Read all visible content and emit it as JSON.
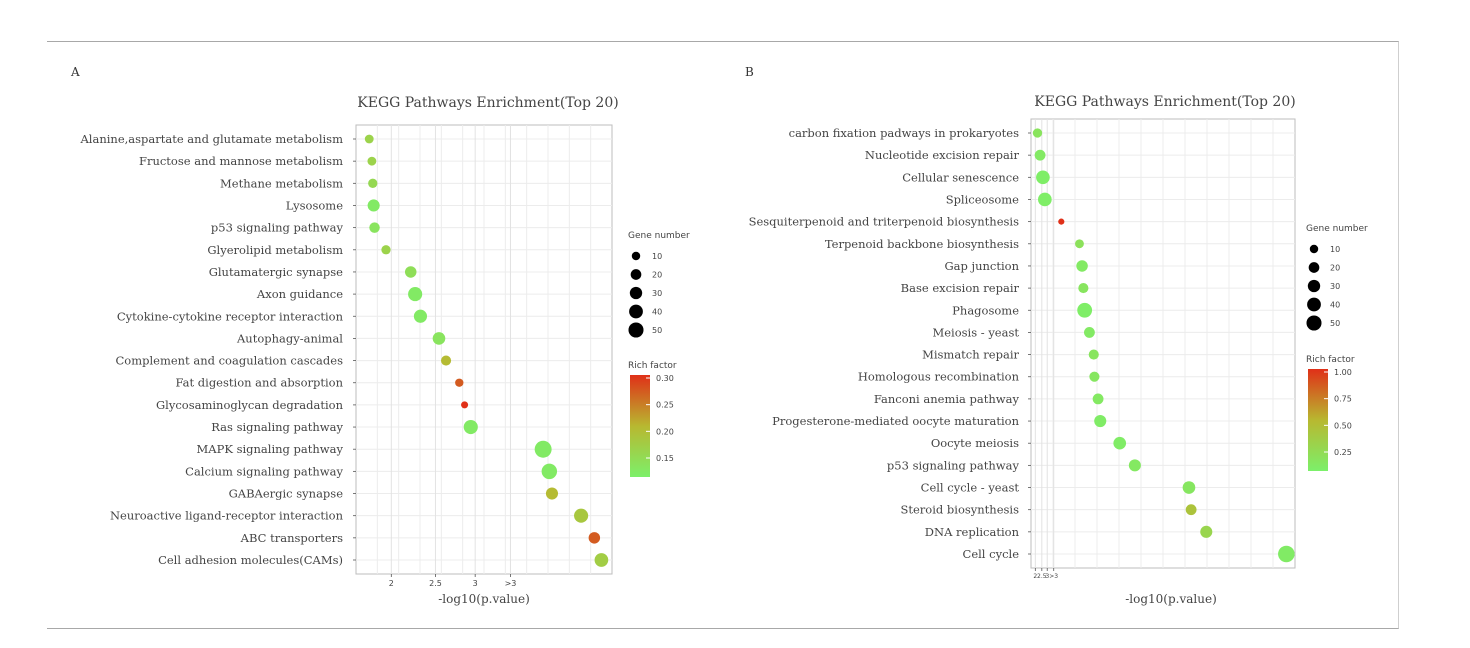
{
  "chart_data": [
    {
      "panel": "A",
      "type": "scatter",
      "title": "KEGG Pathways Enrichment(Top 20)",
      "xlabel": "-log10(p.value)",
      "ylabel": "",
      "x_ticks": [
        "2",
        "2.5",
        "3",
        ">3"
      ],
      "legend_size_title": "Gene number",
      "legend_size_values": [
        10,
        20,
        30,
        40,
        50
      ],
      "legend_color_title": "Rich factor",
      "legend_color_ticks": [
        "0.30",
        "0.25",
        "0.20",
        "0.15"
      ],
      "color_range": [
        0.12,
        0.31
      ],
      "colors": {
        "low": "#7cf06a",
        "mid": "#b8b830",
        "high": "#e03018"
      },
      "grid": true,
      "points": [
        {
          "pathway": "Alanine,aspartate and glutamate metabolism",
          "x": 1.75,
          "gene_number": 5,
          "rich_factor": 0.17
        },
        {
          "pathway": "Fructose and mannose metabolism",
          "x": 1.78,
          "gene_number": 5,
          "rich_factor": 0.17
        },
        {
          "pathway": "Methane metabolism",
          "x": 1.79,
          "gene_number": 6,
          "rich_factor": 0.16
        },
        {
          "pathway": "Lysosome",
          "x": 1.8,
          "gene_number": 14,
          "rich_factor": 0.13
        },
        {
          "pathway": "p53 signaling pathway",
          "x": 1.81,
          "gene_number": 9,
          "rich_factor": 0.14
        },
        {
          "pathway": "Glyerolipid metabolism",
          "x": 1.94,
          "gene_number": 6,
          "rich_factor": 0.17
        },
        {
          "pathway": "Glutamatergic synapse",
          "x": 2.22,
          "gene_number": 12,
          "rich_factor": 0.15
        },
        {
          "pathway": "Axon guidance",
          "x": 2.27,
          "gene_number": 22,
          "rich_factor": 0.13
        },
        {
          "pathway": "Cytokine-cytokine receptor interaction",
          "x": 2.33,
          "gene_number": 18,
          "rich_factor": 0.13
        },
        {
          "pathway": "Autophagy-animal",
          "x": 2.54,
          "gene_number": 16,
          "rich_factor": 0.14
        },
        {
          "pathway": "Complement and coagulation cascades",
          "x": 2.62,
          "gene_number": 8,
          "rich_factor": 0.21
        },
        {
          "pathway": "Fat digestion and absorption",
          "x": 2.77,
          "gene_number": 4,
          "rich_factor": 0.28
        },
        {
          "pathway": "Glycosaminoglycan degradation",
          "x": 2.83,
          "gene_number": 2,
          "rich_factor": 0.31
        },
        {
          "pathway": "Ras signaling pathway",
          "x": 2.9,
          "gene_number": 22,
          "rich_factor": 0.13
        },
        {
          "pathway": "MAPK signaling pathway",
          "x": 3.72,
          "gene_number": 36,
          "rich_factor": 0.13
        },
        {
          "pathway": "Calcium signaling pathway",
          "x": 3.79,
          "gene_number": 28,
          "rich_factor": 0.13
        },
        {
          "pathway": "GABAergic synapse",
          "x": 3.82,
          "gene_number": 14,
          "rich_factor": 0.21
        },
        {
          "pathway": "Neuroactive ligand-receptor interaction",
          "x": 4.15,
          "gene_number": 22,
          "rich_factor": 0.19
        },
        {
          "pathway": "ABC transporters",
          "x": 4.3,
          "gene_number": 12,
          "rich_factor": 0.28
        },
        {
          "pathway": "Cell adhesion molecules(CAMs)",
          "x": 4.38,
          "gene_number": 20,
          "rich_factor": 0.18
        }
      ]
    },
    {
      "panel": "B",
      "type": "scatter",
      "title": "KEGG Pathways Enrichment(Top 20)",
      "xlabel": "-log10(p.value)",
      "ylabel": "",
      "x_ticks": [
        "2",
        "2.5",
        "3",
        ">3"
      ],
      "legend_size_title": "Gene number",
      "legend_size_values": [
        10,
        20,
        30,
        40,
        50
      ],
      "legend_color_title": "Rich factor",
      "legend_color_ticks": [
        "1.00",
        "0.75",
        "0.50",
        "0.25"
      ],
      "color_range": [
        0.08,
        1.0
      ],
      "colors": {
        "low": "#7cf06a",
        "mid": "#b8b830",
        "high": "#e03018"
      },
      "grid": true,
      "points": [
        {
          "pathway": "carbon fixation padways in prokaryotes",
          "x": 2.3,
          "gene_number": 6,
          "rich_factor": 0.18
        },
        {
          "pathway": "Nucleotide excision repair",
          "x": 2.42,
          "gene_number": 10,
          "rich_factor": 0.13
        },
        {
          "pathway": "Cellular senescence",
          "x": 2.55,
          "gene_number": 20,
          "rich_factor": 0.1
        },
        {
          "pathway": "Spliceosome",
          "x": 2.64,
          "gene_number": 20,
          "rich_factor": 0.1
        },
        {
          "pathway": "Sesquiterpenoid and triterpenoid biosynthesis",
          "x": 3.4,
          "gene_number": 1,
          "rich_factor": 1.0
        },
        {
          "pathway": "Terpenoid backbone biosynthesis",
          "x": 4.24,
          "gene_number": 5,
          "rich_factor": 0.2
        },
        {
          "pathway": "Gap junction",
          "x": 4.36,
          "gene_number": 12,
          "rich_factor": 0.13
        },
        {
          "pathway": "Base excision repair",
          "x": 4.42,
          "gene_number": 8,
          "rich_factor": 0.17
        },
        {
          "pathway": "Phagosome",
          "x": 4.48,
          "gene_number": 25,
          "rich_factor": 0.1
        },
        {
          "pathway": "Meiosis - yeast",
          "x": 4.7,
          "gene_number": 10,
          "rich_factor": 0.13
        },
        {
          "pathway": "Mismatch repair",
          "x": 4.9,
          "gene_number": 8,
          "rich_factor": 0.17
        },
        {
          "pathway": "Homologous recombination",
          "x": 4.93,
          "gene_number": 8,
          "rich_factor": 0.16
        },
        {
          "pathway": "Fanconi anemia pathway",
          "x": 5.1,
          "gene_number": 10,
          "rich_factor": 0.14
        },
        {
          "pathway": "Progesterone-mediated oocyte maturation",
          "x": 5.2,
          "gene_number": 14,
          "rich_factor": 0.11
        },
        {
          "pathway": "Oocyte meiosis",
          "x": 6.1,
          "gene_number": 16,
          "rich_factor": 0.11
        },
        {
          "pathway": "p53 signaling pathway",
          "x": 6.8,
          "gene_number": 14,
          "rich_factor": 0.14
        },
        {
          "pathway": "Cell cycle - yeast",
          "x": 9.3,
          "gene_number": 16,
          "rich_factor": 0.16
        },
        {
          "pathway": "Steroid biosynthesis",
          "x": 9.4,
          "gene_number": 10,
          "rich_factor": 0.45
        },
        {
          "pathway": "DNA replication",
          "x": 10.1,
          "gene_number": 14,
          "rich_factor": 0.3
        },
        {
          "pathway": "Cell cycle",
          "x": 13.8,
          "gene_number": 34,
          "rich_factor": 0.12
        }
      ]
    }
  ]
}
